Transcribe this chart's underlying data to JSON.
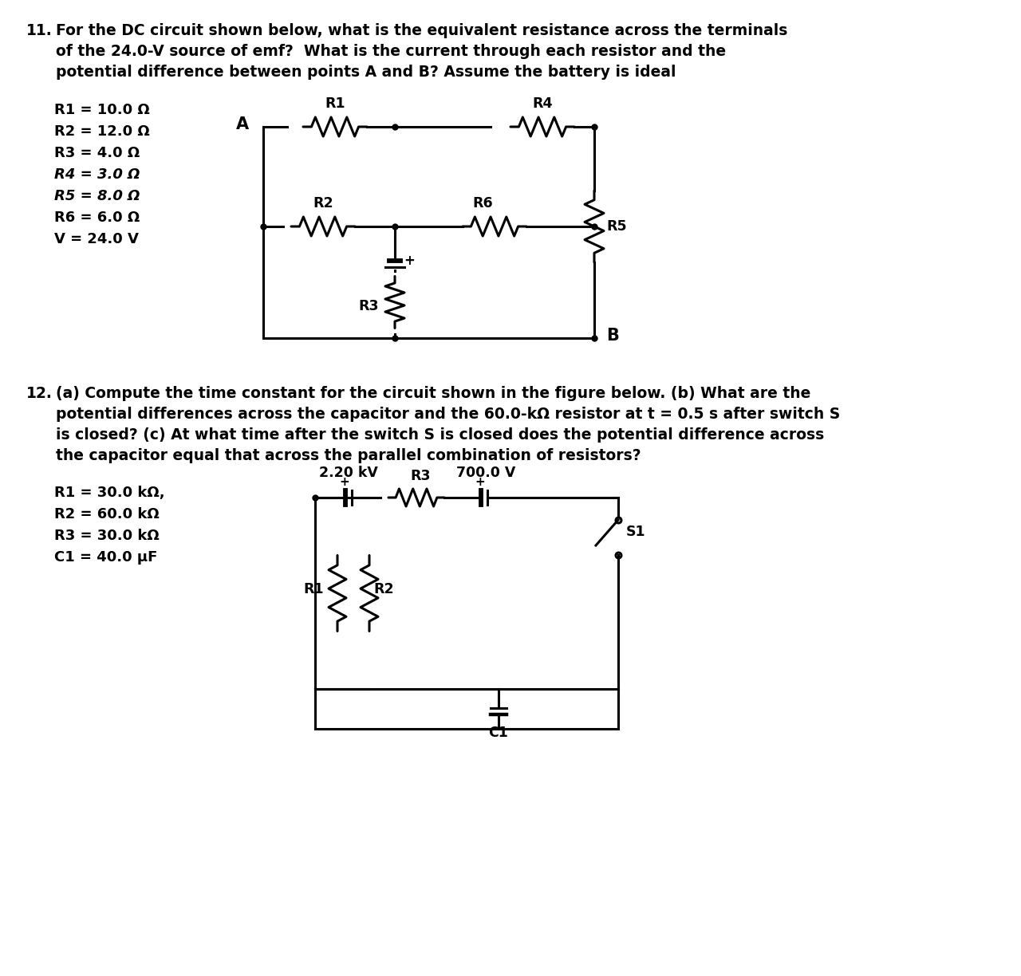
{
  "bg_color": "#ffffff",
  "q11_params": [
    "R1 = 10.0 Ω",
    "R2 = 12.0 Ω",
    "R3 = 4.0 Ω",
    "R4 = 3.0 Ω",
    "R5 = 8.0 Ω",
    "R6 = 6.0 Ω",
    "V = 24.0 V"
  ],
  "q12_params": [
    "R1 = 30.0 kΩ,",
    "R2 = 60.0 kΩ",
    "R3 = 30.0 kΩ",
    "C1 = 40.0 μF"
  ],
  "lw": 2.2,
  "font_main": 13.5,
  "font_label": 13.0,
  "font_circuit": 12.5
}
